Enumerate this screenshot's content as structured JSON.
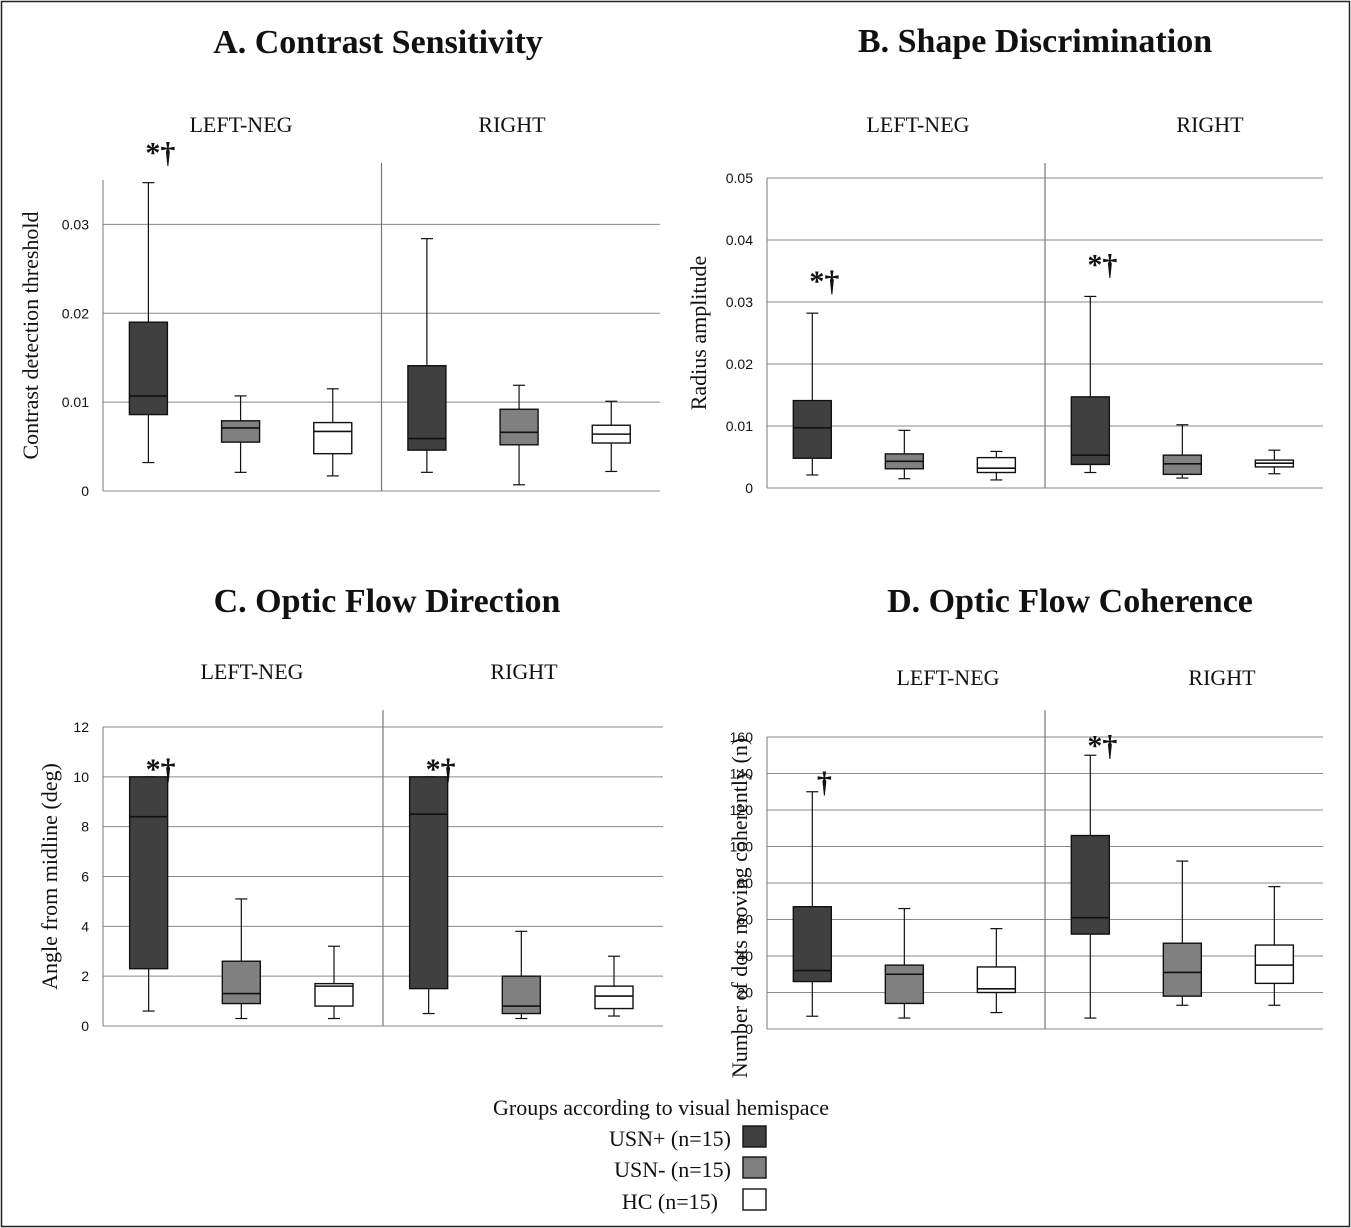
{
  "legend": {
    "title": "Groups according to visual hemispace",
    "items": [
      {
        "label": "USN+ (n=15)",
        "color": "#404040"
      },
      {
        "label": "USN- (n=15)",
        "color": "#808080"
      },
      {
        "label": "HC (n=15)",
        "color": "#ffffff"
      }
    ]
  },
  "chart_data": [
    {
      "type": "box",
      "title": "A. Contrast Sensitivity",
      "ylabel": "Contrast detection threshold",
      "ylim": [
        0,
        0.035
      ],
      "yticks": [
        0,
        0.01,
        0.02,
        0.03
      ],
      "ytick_labels": [
        "0",
        "0.01",
        "0.02",
        "0.03"
      ],
      "grid": true,
      "groups": [
        "LEFT-NEG",
        "RIGHT"
      ],
      "series": [
        "USN+ (n=15)",
        "USN- (n=15)",
        "HC (n=15)"
      ],
      "boxes": [
        {
          "group": "LEFT-NEG",
          "series": "USN+ (n=15)",
          "min": 0.0032,
          "q1": 0.0086,
          "median": 0.0107,
          "q3": 0.019,
          "max": 0.0347,
          "annotation": "*†"
        },
        {
          "group": "LEFT-NEG",
          "series": "USN- (n=15)",
          "min": 0.0021,
          "q1": 0.0055,
          "median": 0.0071,
          "q3": 0.0079,
          "max": 0.0107,
          "annotation": ""
        },
        {
          "group": "LEFT-NEG",
          "series": "HC (n=15)",
          "min": 0.0017,
          "q1": 0.0042,
          "median": 0.0067,
          "q3": 0.0077,
          "max": 0.0115,
          "annotation": ""
        },
        {
          "group": "RIGHT",
          "series": "USN+ (n=15)",
          "min": 0.0021,
          "q1": 0.0046,
          "median": 0.0059,
          "q3": 0.0141,
          "max": 0.0284,
          "annotation": ""
        },
        {
          "group": "RIGHT",
          "series": "USN- (n=15)",
          "min": 0.0007,
          "q1": 0.0052,
          "median": 0.0066,
          "q3": 0.0092,
          "max": 0.0119,
          "annotation": ""
        },
        {
          "group": "RIGHT",
          "series": "HC (n=15)",
          "min": 0.0022,
          "q1": 0.0054,
          "median": 0.0064,
          "q3": 0.0074,
          "max": 0.0101,
          "annotation": ""
        }
      ]
    },
    {
      "type": "box",
      "title": "B. Shape Discrimination",
      "ylabel": "Radius amplitude",
      "ylim": [
        0,
        0.05
      ],
      "yticks": [
        0,
        0.01,
        0.02,
        0.03,
        0.04,
        0.05
      ],
      "ytick_labels": [
        "0",
        "0.01",
        "0.02",
        "0.03",
        "0.04",
        "0.05"
      ],
      "grid": true,
      "groups": [
        "LEFT-NEG",
        "RIGHT"
      ],
      "series": [
        "USN+ (n=15)",
        "USN- (n=15)",
        "HC (n=15)"
      ],
      "boxes": [
        {
          "group": "LEFT-NEG",
          "series": "USN+ (n=15)",
          "min": 0.0021,
          "q1": 0.0048,
          "median": 0.0097,
          "q3": 0.0141,
          "max": 0.0282,
          "annotation": "*†"
        },
        {
          "group": "LEFT-NEG",
          "series": "USN- (n=15)",
          "min": 0.0015,
          "q1": 0.0031,
          "median": 0.0043,
          "q3": 0.0055,
          "max": 0.0093,
          "annotation": ""
        },
        {
          "group": "LEFT-NEG",
          "series": "HC (n=15)",
          "min": 0.0013,
          "q1": 0.0025,
          "median": 0.0032,
          "q3": 0.0049,
          "max": 0.0059,
          "annotation": ""
        },
        {
          "group": "RIGHT",
          "series": "USN+ (n=15)",
          "min": 0.0025,
          "q1": 0.0038,
          "median": 0.0053,
          "q3": 0.0147,
          "max": 0.0309,
          "annotation": "*†"
        },
        {
          "group": "RIGHT",
          "series": "USN- (n=15)",
          "min": 0.0016,
          "q1": 0.0022,
          "median": 0.0039,
          "q3": 0.0053,
          "max": 0.0102,
          "annotation": ""
        },
        {
          "group": "RIGHT",
          "series": "HC (n=15)",
          "min": 0.0023,
          "q1": 0.0034,
          "median": 0.004,
          "q3": 0.0045,
          "max": 0.0061,
          "annotation": ""
        }
      ]
    },
    {
      "type": "box",
      "title": "C. Optic Flow Direction",
      "ylabel": "Angle from midline (deg)",
      "ylim": [
        0,
        12
      ],
      "yticks": [
        0,
        2,
        4,
        6,
        8,
        10,
        12
      ],
      "ytick_labels": [
        "0",
        "2",
        "4",
        "6",
        "8",
        "10",
        "12"
      ],
      "grid": true,
      "groups": [
        "LEFT-NEG",
        "RIGHT"
      ],
      "series": [
        "USN+ (n=15)",
        "USN- (n=15)",
        "HC (n=15)"
      ],
      "boxes": [
        {
          "group": "LEFT-NEG",
          "series": "USN+ (n=15)",
          "min": 0.6,
          "q1": 2.3,
          "median": 8.4,
          "q3": 10.0,
          "max": 10.0,
          "annotation": "*†"
        },
        {
          "group": "LEFT-NEG",
          "series": "USN- (n=15)",
          "min": 0.3,
          "q1": 0.9,
          "median": 1.3,
          "q3": 2.6,
          "max": 5.1,
          "annotation": ""
        },
        {
          "group": "LEFT-NEG",
          "series": "HC (n=15)",
          "min": 0.3,
          "q1": 0.8,
          "median": 1.6,
          "q3": 1.7,
          "max": 3.2,
          "annotation": ""
        },
        {
          "group": "RIGHT",
          "series": "USN+ (n=15)",
          "min": 0.5,
          "q1": 1.5,
          "median": 8.5,
          "q3": 10.0,
          "max": 10.0,
          "annotation": "*†"
        },
        {
          "group": "RIGHT",
          "series": "USN- (n=15)",
          "min": 0.3,
          "q1": 0.5,
          "median": 0.8,
          "q3": 2.0,
          "max": 3.8,
          "annotation": ""
        },
        {
          "group": "RIGHT",
          "series": "HC (n=15)",
          "min": 0.4,
          "q1": 0.7,
          "median": 1.2,
          "q3": 1.6,
          "max": 2.8,
          "annotation": ""
        }
      ]
    },
    {
      "type": "box",
      "title": "D. Optic Flow Coherence",
      "ylabel": "Number of dots moving coherently (n)",
      "ylim": [
        0,
        160
      ],
      "yticks": [
        0,
        20,
        40,
        60,
        80,
        100,
        120,
        140,
        160
      ],
      "ytick_labels": [
        "0",
        "20",
        "40",
        "60",
        "80",
        "100",
        "120",
        "140",
        "160"
      ],
      "grid": true,
      "groups": [
        "LEFT-NEG",
        "RIGHT"
      ],
      "series": [
        "USN+ (n=15)",
        "USN- (n=15)",
        "HC (n=15)"
      ],
      "boxes": [
        {
          "group": "LEFT-NEG",
          "series": "USN+ (n=15)",
          "min": 7,
          "q1": 26,
          "median": 32,
          "q3": 67,
          "max": 130,
          "annotation": "†"
        },
        {
          "group": "LEFT-NEG",
          "series": "USN- (n=15)",
          "min": 6,
          "q1": 14,
          "median": 30,
          "q3": 35,
          "max": 66,
          "annotation": ""
        },
        {
          "group": "LEFT-NEG",
          "series": "HC (n=15)",
          "min": 9,
          "q1": 20,
          "median": 22,
          "q3": 34,
          "max": 55,
          "annotation": ""
        },
        {
          "group": "RIGHT",
          "series": "USN+ (n=15)",
          "min": 6,
          "q1": 52,
          "median": 61,
          "q3": 106,
          "max": 150,
          "annotation": "*†"
        },
        {
          "group": "RIGHT",
          "series": "USN- (n=15)",
          "min": 13,
          "q1": 18,
          "median": 31,
          "q3": 47,
          "max": 92,
          "annotation": ""
        },
        {
          "group": "RIGHT",
          "series": "HC (n=15)",
          "min": 13,
          "q1": 25,
          "median": 35,
          "q3": 46,
          "max": 78,
          "annotation": ""
        }
      ]
    }
  ]
}
